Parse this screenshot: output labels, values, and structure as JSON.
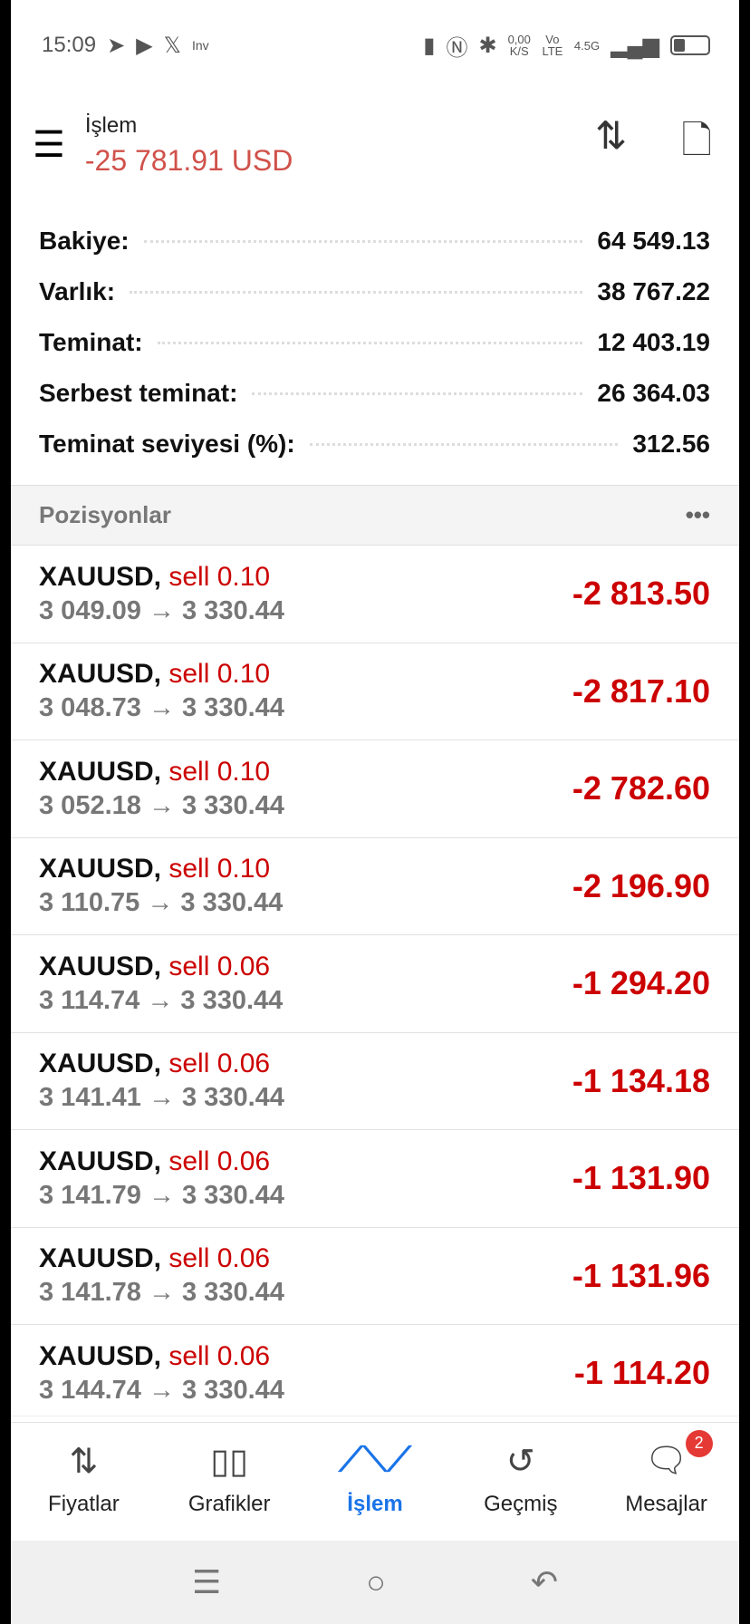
{
  "status": {
    "time": "15:09",
    "icons": [
      "telegram-icon",
      "youtube-icon",
      "x-icon",
      "inv-icon"
    ],
    "net_speed": "0,00",
    "net_unit": "K/S",
    "volte": "Vo LTE",
    "network": "4.5G"
  },
  "header": {
    "title": "İşlem",
    "profit": "-25 781.91 USD",
    "profit_color": "#d0514a"
  },
  "summary": [
    {
      "label": "Bakiye:",
      "value": "64 549.13"
    },
    {
      "label": "Varlık:",
      "value": "38 767.22"
    },
    {
      "label": "Teminat:",
      "value": "12 403.19"
    },
    {
      "label": "Serbest teminat:",
      "value": "26 364.03"
    },
    {
      "label": "Teminat seviyesi (%):",
      "value": "312.56"
    }
  ],
  "positions_header": {
    "title": "Pozisyonlar",
    "more": "•••"
  },
  "positions": [
    {
      "symbol": "XAUUSD,",
      "side": "sell 0.10",
      "prices": "3 049.09 → 3 330.44",
      "pl": "-2 813.50"
    },
    {
      "symbol": "XAUUSD,",
      "side": "sell 0.10",
      "prices": "3 048.73 → 3 330.44",
      "pl": "-2 817.10"
    },
    {
      "symbol": "XAUUSD,",
      "side": "sell 0.10",
      "prices": "3 052.18 → 3 330.44",
      "pl": "-2 782.60"
    },
    {
      "symbol": "XAUUSD,",
      "side": "sell 0.10",
      "prices": "3 110.75 → 3 330.44",
      "pl": "-2 196.90"
    },
    {
      "symbol": "XAUUSD,",
      "side": "sell 0.06",
      "prices": "3 114.74 → 3 330.44",
      "pl": "-1 294.20"
    },
    {
      "symbol": "XAUUSD,",
      "side": "sell 0.06",
      "prices": "3 141.41 → 3 330.44",
      "pl": "-1 134.18"
    },
    {
      "symbol": "XAUUSD,",
      "side": "sell 0.06",
      "prices": "3 141.79 → 3 330.44",
      "pl": "-1 131.90"
    },
    {
      "symbol": "XAUUSD,",
      "side": "sell 0.06",
      "prices": "3 141.78 → 3 330.44",
      "pl": "-1 131.96"
    },
    {
      "symbol": "XAUUSD,",
      "side": "sell 0.06",
      "prices": "3 144.74 → 3 330.44",
      "pl": "-1 114.20"
    }
  ],
  "nav": [
    {
      "label": "Fiyatlar",
      "icon": "quotes-arrows-icon"
    },
    {
      "label": "Grafikler",
      "icon": "candlestick-icon"
    },
    {
      "label": "İşlem",
      "icon": "trade-line-icon",
      "active": true
    },
    {
      "label": "Geçmiş",
      "icon": "history-icon"
    },
    {
      "label": "Mesajlar",
      "icon": "messages-icon",
      "badge": "2"
    }
  ],
  "accent": "#1a73e8",
  "loss_color": "#cc0000"
}
